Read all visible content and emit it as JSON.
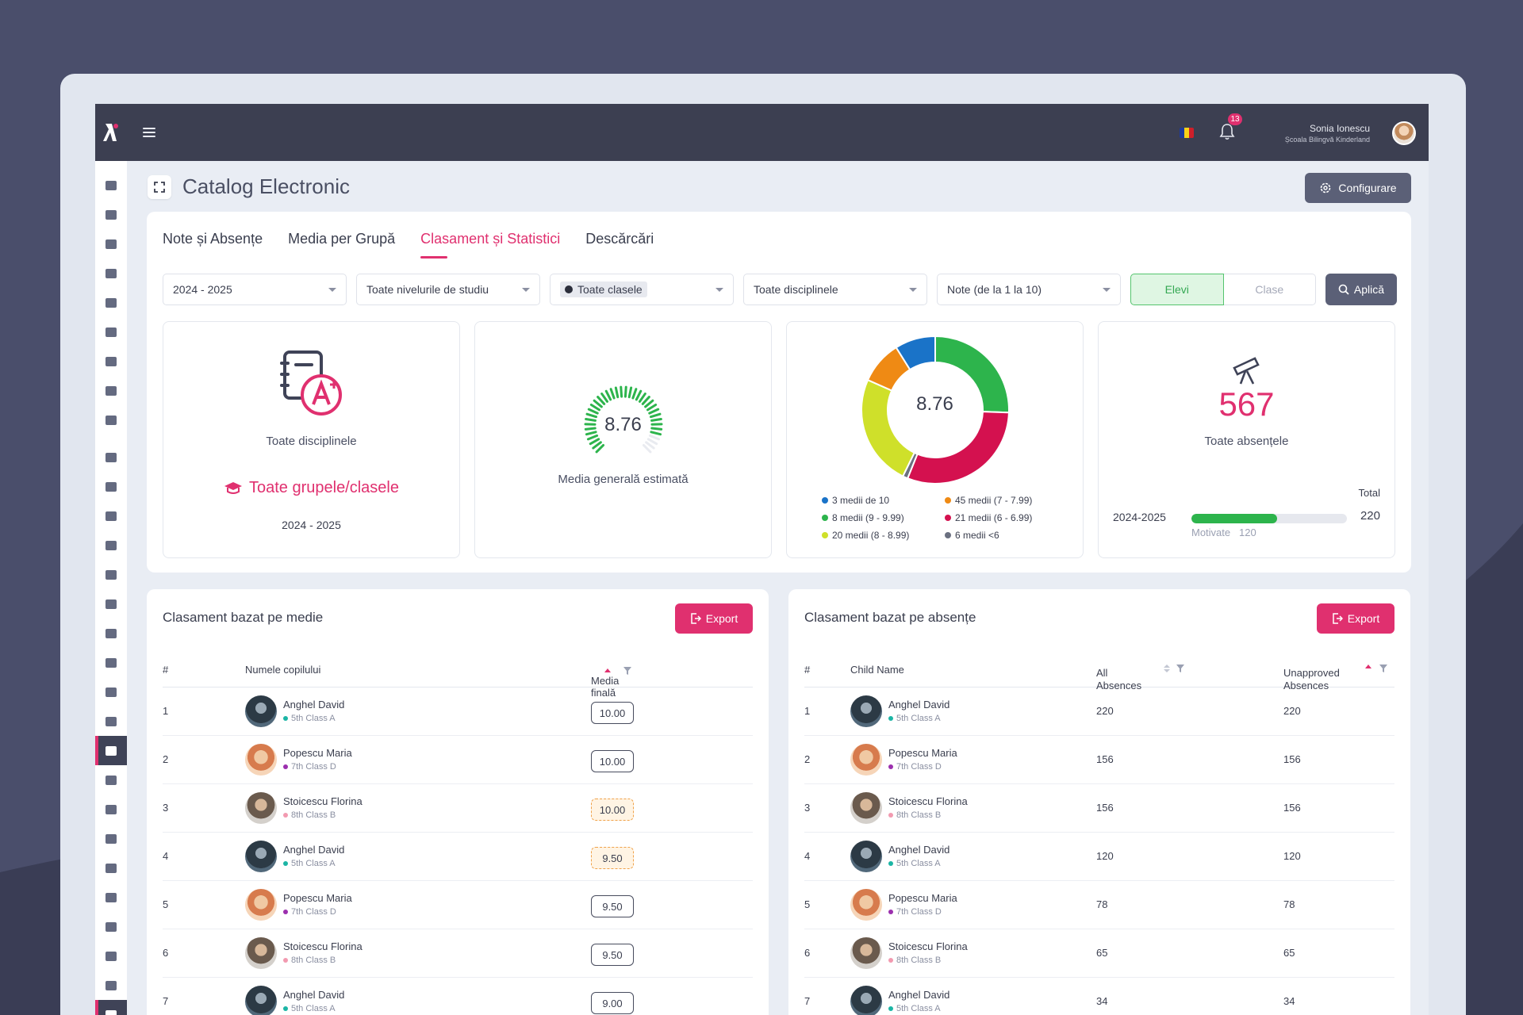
{
  "app": {
    "title": "Catalog Electronic",
    "config_label": "Configurare",
    "notifications": "13"
  },
  "user": {
    "name": "Sonia Ionescu",
    "school": "Școala Bilingvă Kinderland"
  },
  "tabs": [
    {
      "label": "Note și Absențe"
    },
    {
      "label": "Media per Grupă"
    },
    {
      "label": "Clasament și Statistici"
    },
    {
      "label": "Descărcări"
    }
  ],
  "filters": {
    "year": "2024 - 2025",
    "level": "Toate nivelurile de studiu",
    "classes": "Toate clasele",
    "subjects": "Toate disciplinele",
    "grades": "Note (de la 1 la 10)",
    "toggle_on": "Elevi",
    "toggle_off": "Clase",
    "apply": "Aplică"
  },
  "card1": {
    "label": "Toate disciplinele",
    "group": "Toate grupele/clasele",
    "year": "2024 - 2025"
  },
  "card2": {
    "value": "8.76",
    "label": "Media generală estimată",
    "fraction": 0.876
  },
  "card3": {
    "center": "8.76",
    "legend": [
      {
        "label": "3 medii de 10",
        "color": "#1a73c8"
      },
      {
        "label": "45 medii (7 - 7.99)",
        "color": "#ef8a14"
      },
      {
        "label": "8 medii (9 - 9.99)",
        "color": "#2db44c"
      },
      {
        "label": "21 medii (6 - 6.99)",
        "color": "#d4114f"
      },
      {
        "label": "20 medii (8 - 8.99)",
        "color": "#cfe02a"
      },
      {
        "label": "6 medii <6",
        "color": "#6b7080"
      }
    ]
  },
  "card4": {
    "count": "567",
    "label": "Toate absențele",
    "total_label": "Total",
    "year": "2024-2025",
    "total": "220",
    "motivated_label": "Motivate",
    "motivated": "120",
    "fraction": 0.55
  },
  "left_table": {
    "title": "Clasament bazat pe medie",
    "export": "Export",
    "headers": {
      "num": "#",
      "name": "Numele copilului",
      "avg": "Media finală"
    },
    "rows": [
      {
        "num": "1",
        "name": "Anghel David",
        "class": "5th Class A",
        "grade": "10.00"
      },
      {
        "num": "2",
        "name": "Popescu Maria",
        "class": "7th Class D",
        "grade": "10.00"
      },
      {
        "num": "3",
        "name": "Stoicescu Florina",
        "class": "8th Class B",
        "grade": "10.00"
      },
      {
        "num": "4",
        "name": "Anghel David",
        "class": "5th Class A",
        "grade": "9.50"
      },
      {
        "num": "5",
        "name": "Popescu Maria",
        "class": "7th Class D",
        "grade": "9.50"
      },
      {
        "num": "6",
        "name": "Stoicescu Florina",
        "class": "8th Class B",
        "grade": "9.50"
      },
      {
        "num": "7",
        "name": "Anghel David",
        "class": "5th Class A",
        "grade": "9.00"
      }
    ]
  },
  "right_table": {
    "title": "Clasament bazat pe absențe",
    "export": "Export",
    "headers": {
      "num": "#",
      "name": "Child Name",
      "all": "All Absences",
      "unapproved": "Unapproved Absences"
    },
    "rows": [
      {
        "num": "1",
        "name": "Anghel David",
        "class": "5th Class A",
        "all": "220",
        "unapproved": "220"
      },
      {
        "num": "2",
        "name": "Popescu Maria",
        "class": "7th Class D",
        "all": "156",
        "unapproved": "156"
      },
      {
        "num": "3",
        "name": "Stoicescu Florina",
        "class": "8th Class B",
        "all": "156",
        "unapproved": "156"
      },
      {
        "num": "4",
        "name": "Anghel David",
        "class": "5th Class A",
        "all": "120",
        "unapproved": "120"
      },
      {
        "num": "5",
        "name": "Popescu Maria",
        "class": "7th Class D",
        "all": "78",
        "unapproved": "78"
      },
      {
        "num": "6",
        "name": "Stoicescu Florina",
        "class": "8th Class B",
        "all": "65",
        "unapproved": "65"
      },
      {
        "num": "7",
        "name": "Anghel David",
        "class": "5th Class A",
        "all": "34",
        "unapproved": "34"
      }
    ]
  },
  "colors": {
    "accent": "#e0306f",
    "dark": "#3c3f51",
    "success": "#2db44c"
  },
  "class_dot_colors": {
    "5th Class A": "#1bb5a5",
    "7th Class D": "#9b2fae",
    "8th Class B": "#f29ab0"
  }
}
